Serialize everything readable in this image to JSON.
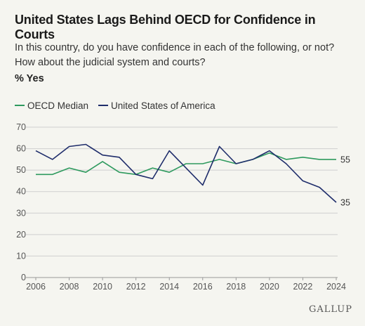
{
  "header": {
    "title": "United States Lags Behind OECD for Confidence in Courts",
    "subtitle": "In this country, do you have confidence in each of the following, or not? How about the judicial system and courts?",
    "unit": "% Yes"
  },
  "brand": "GALLUP",
  "colors": {
    "oecd": "#2e9a5e",
    "usa": "#1f2d6b",
    "grid": "#cfcfcf",
    "background": "#f5f5f0"
  },
  "chart_data": {
    "type": "line",
    "title": "United States Lags Behind OECD for Confidence in Courts",
    "xlabel": "",
    "ylabel": "% Yes",
    "x": [
      2006,
      2007,
      2008,
      2009,
      2010,
      2011,
      2012,
      2013,
      2014,
      2015,
      2016,
      2017,
      2018,
      2019,
      2020,
      2021,
      2022,
      2023,
      2024
    ],
    "series": [
      {
        "name": "OECD Median",
        "color": "#2e9a5e",
        "values": [
          48,
          48,
          51,
          49,
          54,
          49,
          48,
          51,
          49,
          53,
          53,
          55,
          53,
          55,
          58,
          55,
          56,
          55,
          55
        ]
      },
      {
        "name": "United States of America",
        "color": "#1f2d6b",
        "values": [
          59,
          55,
          61,
          62,
          57,
          56,
          48,
          46,
          59,
          51,
          43,
          61,
          53,
          55,
          59,
          53,
          45,
          42,
          35
        ]
      }
    ],
    "end_labels": [
      "55",
      "35"
    ],
    "xlim": [
      2006,
      2024
    ],
    "ylim": [
      0,
      70
    ],
    "x_ticks": [
      "2006",
      "2008",
      "2010",
      "2012",
      "2014",
      "2016",
      "2018",
      "2020",
      "2022",
      "2024"
    ],
    "y_ticks": [
      "0",
      "10",
      "20",
      "30",
      "40",
      "50",
      "60",
      "70"
    ],
    "grid": true,
    "legend": "top-left"
  }
}
